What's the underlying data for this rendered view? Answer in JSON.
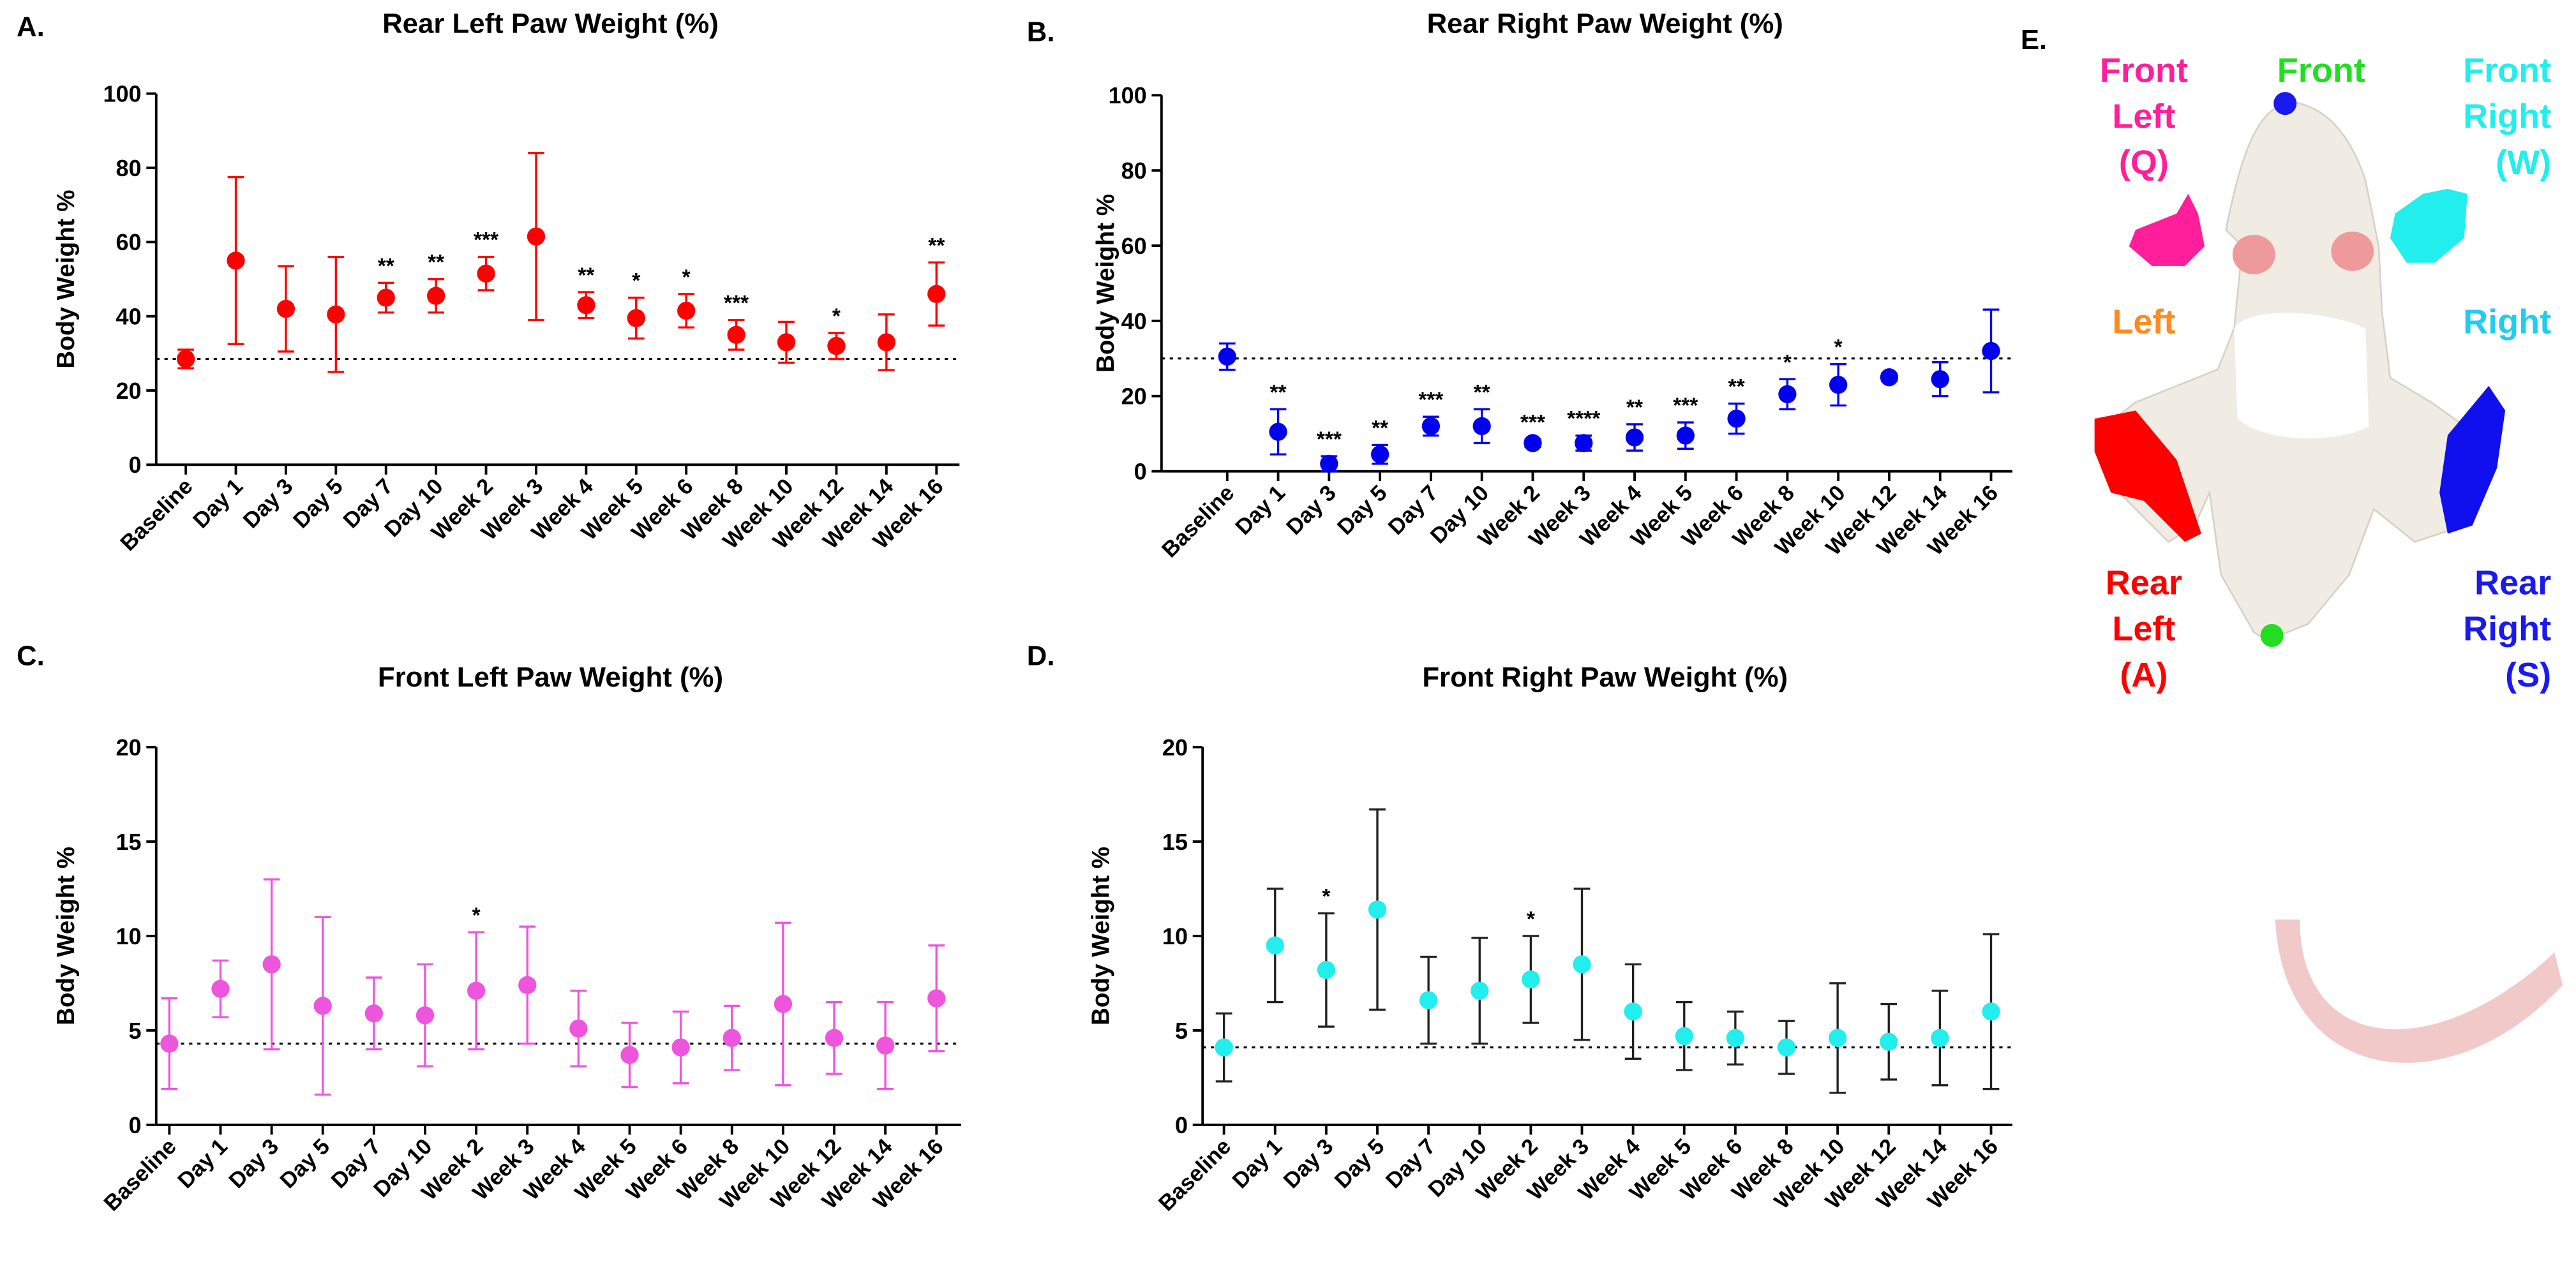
{
  "chart_data": [
    {
      "type": "errorbar",
      "panel_label": "A.",
      "title": "Rear Left Paw Weight (%)",
      "y_label": "Body Weight %",
      "categories": [
        "Baseline",
        "Day 1",
        "Day 3",
        "Day 5",
        "Day 7",
        "Day 10",
        "Week 2",
        "Week 3",
        "Week 4",
        "Week 5",
        "Week 6",
        "Week 8",
        "Week 10",
        "Week 12",
        "Week 14",
        "Week 16"
      ],
      "values": [
        28.5,
        55,
        42,
        40.5,
        45,
        45.5,
        51.5,
        61.5,
        43,
        39.5,
        41.5,
        35,
        33,
        32,
        33,
        46
      ],
      "errors": [
        2.5,
        22.5,
        11.5,
        15.5,
        4,
        4.5,
        4.5,
        22.5,
        3.5,
        5.5,
        4.5,
        4,
        5.5,
        3.5,
        7.5,
        8.5
      ],
      "significance": [
        null,
        null,
        null,
        null,
        "**",
        "**",
        "***",
        null,
        "**",
        "*",
        "*",
        "***",
        null,
        "*",
        null,
        "**"
      ],
      "reference_line": 28.5,
      "color": "#ff0000",
      "error_color": "#ff0000",
      "ylim": [
        0,
        100
      ],
      "yticks": [
        0,
        20,
        40,
        60,
        80,
        100
      ]
    },
    {
      "type": "errorbar",
      "panel_label": "B.",
      "title": "Rear Right Paw Weight (%)",
      "y_label": "Body Weight %",
      "categories": [
        "Baseline",
        "Day 1",
        "Day 3",
        "Day 5",
        "Day 7",
        "Day 10",
        "Week 2",
        "Week 3",
        "Week 4",
        "Week 5",
        "Week 6",
        "Week 8",
        "Week 10",
        "Week 12",
        "Week 14",
        "Week 16"
      ],
      "values": [
        30.5,
        10.5,
        2,
        4.5,
        12,
        12,
        7.5,
        7.5,
        9,
        9.5,
        14,
        20.5,
        23,
        25,
        24.5,
        32
      ],
      "errors": [
        3.5,
        6,
        2,
        2.5,
        2.5,
        4.5,
        1,
        2,
        3.5,
        3.5,
        4,
        4,
        5.5,
        1,
        4.5,
        11
      ],
      "significance": [
        null,
        "**",
        "***",
        "**",
        "***",
        "**",
        "***",
        "****",
        "**",
        "***",
        "**",
        "*",
        "*",
        null,
        null,
        null
      ],
      "reference_line": 30,
      "color": "#0000ee",
      "error_color": "#0000ee",
      "ylim": [
        0,
        100
      ],
      "yticks": [
        0,
        20,
        40,
        60,
        80,
        100
      ]
    },
    {
      "type": "errorbar",
      "panel_label": "C.",
      "title": "Front Left Paw Weight (%)",
      "y_label": "Body Weight %",
      "categories": [
        "Baseline",
        "Day 1",
        "Day 3",
        "Day 5",
        "Day 7",
        "Day 10",
        "Week 2",
        "Week 3",
        "Week 4",
        "Week 5",
        "Week 6",
        "Week 8",
        "Week 10",
        "Week 12",
        "Week 14",
        "Week 16"
      ],
      "values": [
        4.3,
        7.2,
        8.5,
        6.3,
        5.9,
        5.8,
        7.1,
        7.4,
        5.1,
        3.7,
        4.1,
        4.6,
        6.4,
        4.6,
        4.2,
        6.7
      ],
      "errors": [
        2.4,
        1.5,
        4.5,
        4.7,
        1.9,
        2.7,
        3.1,
        3.1,
        2.0,
        1.7,
        1.9,
        1.7,
        4.3,
        1.9,
        2.3,
        2.8
      ],
      "significance": [
        null,
        null,
        null,
        null,
        null,
        null,
        "*",
        null,
        null,
        null,
        null,
        null,
        null,
        null,
        null,
        null
      ],
      "reference_line": 4.3,
      "color": "#ee55dd",
      "error_color": "#ee55dd",
      "ylim": [
        0,
        20
      ],
      "yticks": [
        0,
        5,
        10,
        15,
        20
      ]
    },
    {
      "type": "errorbar",
      "panel_label": "D.",
      "title": "Front Right Paw Weight (%)",
      "y_label": "Body Weight %",
      "categories": [
        "Baseline",
        "Day 1",
        "Day 3",
        "Day 5",
        "Day 7",
        "Day 10",
        "Week 2",
        "Week 3",
        "Week 4",
        "Week 5",
        "Week 6",
        "Week 8",
        "Week 10",
        "Week 12",
        "Week 14",
        "Week 16"
      ],
      "values": [
        4.1,
        9.5,
        8.2,
        11.4,
        6.6,
        7.1,
        7.7,
        8.5,
        6.0,
        4.7,
        4.6,
        4.1,
        4.6,
        4.4,
        4.6,
        6.0
      ],
      "errors": [
        1.8,
        3.0,
        3.0,
        5.3,
        2.3,
        2.8,
        2.3,
        4.0,
        2.5,
        1.8,
        1.4,
        1.4,
        2.9,
        2.0,
        2.5,
        4.1
      ],
      "significance": [
        null,
        null,
        "*",
        null,
        null,
        null,
        "*",
        null,
        null,
        null,
        null,
        null,
        null,
        null,
        null,
        null
      ],
      "reference_line": 4.1,
      "color": "#22eeee",
      "error_color": "#222222",
      "ylim": [
        0,
        20
      ],
      "yticks": [
        0,
        5,
        10,
        15,
        20
      ]
    }
  ],
  "diagram": {
    "panel_label": "E.",
    "labels": [
      {
        "lines": [
          "Front",
          "Left",
          "(Q)"
        ],
        "color": "#ff1f9a"
      },
      {
        "lines": [
          "Front"
        ],
        "color": "#22dd22"
      },
      {
        "lines": [
          "Front",
          "Right",
          "(W)"
        ],
        "color": "#22eeee"
      },
      {
        "lines": [
          "Left"
        ],
        "color": "#ff8a1f"
      },
      {
        "lines": [
          "Right"
        ],
        "color": "#22ccee"
      },
      {
        "lines": [
          "Rear",
          "Left",
          "(A)"
        ],
        "color": "#ff0000"
      },
      {
        "lines": [
          "Rear",
          "Right",
          "(S)"
        ],
        "color": "#1a1aee"
      }
    ]
  }
}
